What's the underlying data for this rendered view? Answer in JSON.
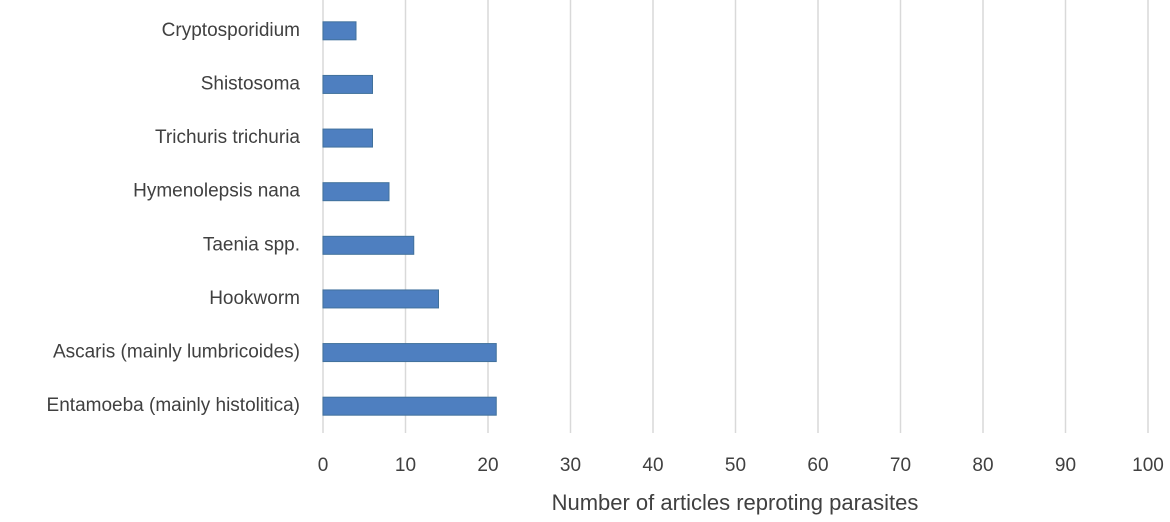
{
  "chart_data": {
    "type": "bar",
    "orientation": "horizontal",
    "x_label": "Number of articles reproting parasites",
    "categories": [
      "Cryptosporidium",
      "Shistosoma",
      "Trichuris trichuria",
      "Hymenolepsis nana",
      "Taenia spp.",
      "Hookworm",
      "Ascaris (mainly lumbricoides)",
      "Entamoeba (mainly histolitica)"
    ],
    "values": [
      4,
      6,
      6,
      8,
      11,
      14,
      21,
      21
    ],
    "color": "#4e7fc0",
    "xlim": [
      0,
      100
    ],
    "xticks": [
      0,
      10,
      20,
      30,
      40,
      50,
      60,
      70,
      80,
      90,
      100
    ],
    "grid": true
  }
}
